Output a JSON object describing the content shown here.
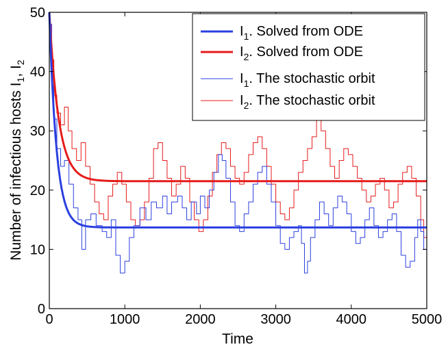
{
  "chart_data": {
    "type": "line",
    "title": "",
    "xlabel": "Time",
    "ylabel": {
      "text": "Number of infectious hosts I",
      "sub1": "1",
      "sep": ", I",
      "sub2": "2"
    },
    "xlim": [
      0,
      5000
    ],
    "ylim": [
      0,
      50
    ],
    "xticks": [
      0,
      1000,
      2000,
      3000,
      4000,
      5000
    ],
    "yticks": [
      0,
      10,
      20,
      30,
      40,
      50
    ],
    "grid": false,
    "legend_position": "top-right",
    "series": [
      {
        "name": "I1. Solved from ODE",
        "legend": {
          "main": "I",
          "sub": "1",
          "rest": ".  Solved from ODE"
        },
        "color": "#2a3fe0",
        "kind": "ode",
        "start": 50,
        "equilibrium": 13.7,
        "rate_per_time": 0.0105
      },
      {
        "name": "I2. Solved from ODE",
        "legend": {
          "main": "I",
          "sub": "2",
          "rest": ".  Solved from ODE"
        },
        "color": "#e61a1a",
        "kind": "ode",
        "start": 50,
        "equilibrium": 21.5,
        "rate_per_time": 0.008
      },
      {
        "name": "I1. The stochastic orbit",
        "legend": {
          "main": "I",
          "sub": "1",
          "rest": ".  The stochastic orbit"
        },
        "color": "#2a3fe0",
        "kind": "stochastic",
        "x": [
          0,
          30,
          60,
          100,
          150,
          200,
          260,
          320,
          380,
          430,
          480,
          550,
          620,
          700,
          760,
          820,
          880,
          940,
          1000,
          1060,
          1120,
          1200,
          1280,
          1350,
          1420,
          1500,
          1560,
          1620,
          1700,
          1760,
          1820,
          1880,
          1950,
          2000,
          2060,
          2120,
          2180,
          2240,
          2290,
          2340,
          2400,
          2460,
          2520,
          2580,
          2640,
          2700,
          2760,
          2820,
          2880,
          2940,
          3000,
          3060,
          3120,
          3180,
          3240,
          3300,
          3340,
          3380,
          3420,
          3460,
          3520,
          3580,
          3640,
          3700,
          3760,
          3820,
          3880,
          3940,
          4000,
          4060,
          4120,
          4180,
          4240,
          4300,
          4360,
          4420,
          4480,
          4540,
          4600,
          4660,
          4720,
          4780,
          4840,
          4880,
          4920,
          4960,
          5000
        ],
        "y": [
          48,
          40,
          32,
          27,
          24,
          25,
          21,
          17,
          15,
          10,
          15,
          16,
          14,
          13,
          12,
          15,
          9,
          6,
          8,
          12,
          14,
          17,
          15,
          18,
          17,
          19,
          16,
          18,
          19,
          17,
          15,
          18,
          16,
          19,
          17,
          20,
          23,
          26,
          25,
          22,
          18,
          14,
          13,
          16,
          18,
          21,
          23,
          24,
          21,
          18,
          14,
          11,
          10,
          12,
          13,
          14,
          11,
          6,
          8,
          12,
          15,
          18,
          16,
          14,
          17,
          19,
          18,
          16,
          13,
          11,
          12,
          15,
          17,
          14,
          12,
          13,
          15,
          16,
          13,
          9,
          7,
          8,
          12,
          15,
          13,
          10,
          9
        ]
      },
      {
        "name": "I2. The stochastic orbit",
        "legend": {
          "main": "I",
          "sub": "2",
          "rest": ".  The stochastic orbit"
        },
        "color": "#e61a1a",
        "kind": "stochastic",
        "x": [
          0,
          30,
          60,
          100,
          150,
          200,
          250,
          300,
          360,
          420,
          480,
          540,
          600,
          660,
          720,
          780,
          840,
          900,
          960,
          1020,
          1080,
          1140,
          1200,
          1260,
          1320,
          1380,
          1440,
          1500,
          1560,
          1620,
          1680,
          1740,
          1800,
          1860,
          1920,
          1980,
          2040,
          2100,
          2160,
          2220,
          2280,
          2340,
          2400,
          2460,
          2520,
          2580,
          2640,
          2700,
          2760,
          2820,
          2880,
          2940,
          3000,
          3060,
          3120,
          3180,
          3240,
          3300,
          3360,
          3420,
          3480,
          3540,
          3600,
          3660,
          3720,
          3780,
          3840,
          3900,
          3960,
          4020,
          4080,
          4140,
          4200,
          4260,
          4320,
          4380,
          4440,
          4500,
          4560,
          4620,
          4680,
          4740,
          4800,
          4860,
          4920,
          4960,
          5000
        ],
        "y": [
          48,
          42,
          36,
          33,
          31,
          34,
          30,
          27,
          25,
          28,
          24,
          21,
          18,
          16,
          15,
          19,
          21,
          23,
          21,
          18,
          15,
          14,
          15,
          18,
          22,
          27,
          28,
          25,
          22,
          19,
          21,
          24,
          22,
          18,
          15,
          13,
          15,
          19,
          23,
          26,
          28,
          27,
          24,
          22,
          21,
          23,
          26,
          28,
          29,
          27,
          24,
          21,
          18,
          16,
          15,
          17,
          20,
          23,
          25,
          27,
          29,
          32,
          30,
          27,
          24,
          22,
          25,
          27,
          26,
          24,
          22,
          20,
          18,
          19,
          21,
          22,
          20,
          17,
          18,
          21,
          23,
          24,
          22,
          19,
          15,
          12,
          10
        ]
      }
    ]
  }
}
